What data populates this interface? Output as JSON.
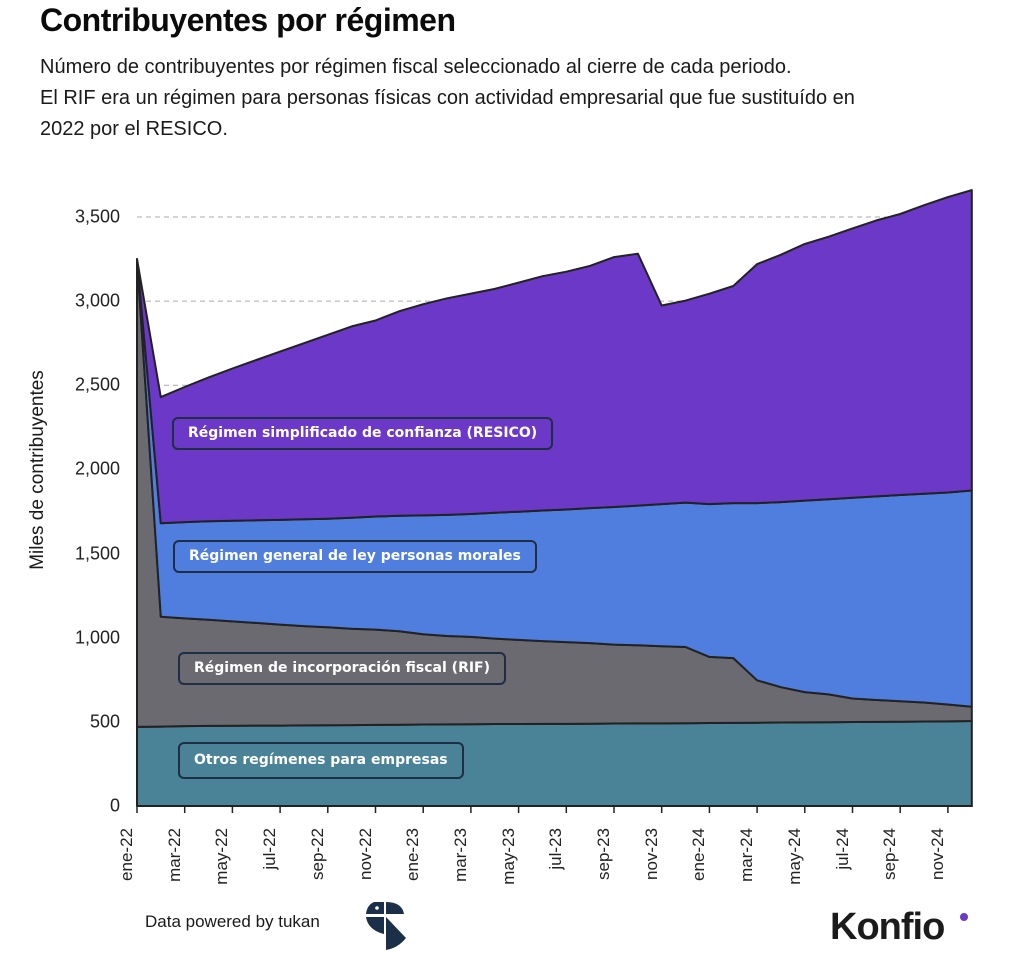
{
  "header": {
    "title": "Contribuyentes por régimen",
    "subtitle_lines": [
      "Número de contribuyentes por régimen fiscal seleccionado al cierre de cada periodo.",
      "El RIF era un régimen para personas físicas con actividad empresarial que fue sustituído en",
      "2022 por el RESICO."
    ]
  },
  "footer": {
    "powered_by": "Data powered by tukan",
    "brand": "Konfio",
    "brand_accent": "#6b3ac8"
  },
  "colors": {
    "otros": "#4a8298",
    "rif": "#6b6a70",
    "glpm": "#4f7ede",
    "resico": "#6b38c8",
    "outline": "#222222",
    "grid": "#aaaaaa",
    "label_border": "#1f2d45"
  },
  "chart_data": {
    "type": "area",
    "stacked": true,
    "title": "Contribuyentes por régimen",
    "xlabel": "",
    "ylabel": "Miles de contribuyentes",
    "ylim": [
      0,
      3500
    ],
    "yticks": [
      0,
      500,
      1000,
      1500,
      2000,
      2500,
      3000,
      3500
    ],
    "ytick_labels": [
      "0",
      "500",
      "1,000",
      "1,500",
      "2,000",
      "2,500",
      "3,000",
      "3,500"
    ],
    "grid": "horizontal dashed",
    "x": [
      "ene-22",
      "feb-22",
      "mar-22",
      "abr-22",
      "may-22",
      "jun-22",
      "jul-22",
      "ago-22",
      "sep-22",
      "oct-22",
      "nov-22",
      "dic-22",
      "ene-23",
      "feb-23",
      "mar-23",
      "abr-23",
      "may-23",
      "jun-23",
      "jul-23",
      "ago-23",
      "sep-23",
      "oct-23",
      "nov-23",
      "dic-23",
      "ene-24",
      "feb-24",
      "mar-24",
      "abr-24",
      "may-24",
      "jun-24",
      "jul-24",
      "ago-24",
      "sep-24",
      "oct-24",
      "nov-24",
      "dic-24"
    ],
    "xtick_labels": [
      "ene-22",
      "mar-22",
      "may-22",
      "jul-22",
      "sep-22",
      "nov-22",
      "ene-23",
      "mar-23",
      "may-23",
      "jul-23",
      "sep-23",
      "nov-23",
      "ene-24",
      "mar-24",
      "may-24",
      "jul-24",
      "sep-24",
      "nov-24"
    ],
    "series": [
      {
        "name": "Otros regímenes para empresas",
        "values": [
          470,
          472,
          475,
          476,
          477,
          478,
          478,
          479,
          480,
          481,
          482,
          483,
          484,
          485,
          486,
          487,
          487,
          488,
          488,
          489,
          490,
          491,
          491,
          492,
          493,
          494,
          495,
          496,
          497,
          498,
          499,
          500,
          501,
          502,
          503,
          505
        ]
      },
      {
        "name": "Régimen de incorporación fiscal (RIF)",
        "values": [
          2780,
          653,
          640,
          631,
          620,
          610,
          600,
          590,
          582,
          572,
          566,
          556,
          536,
          525,
          519,
          508,
          500,
          492,
          486,
          479,
          469,
          464,
          458,
          453,
          393,
          385,
          252,
          210,
          180,
          165,
          140,
          130,
          122,
          113,
          100,
          85
        ]
      },
      {
        "name": "Régimen general de ley personas morales",
        "values": [
          0,
          555,
          572,
          585,
          598,
          610,
          622,
          635,
          645,
          660,
          672,
          686,
          707,
          720,
          730,
          748,
          762,
          776,
          788,
          802,
          818,
          830,
          845,
          858,
          908,
          921,
          1053,
          1100,
          1138,
          1160,
          1193,
          1210,
          1225,
          1240,
          1260,
          1285
        ]
      },
      {
        "name": "Régimen simplificado de confianza (RESICO)",
        "values": [
          0,
          750,
          803,
          855,
          905,
          952,
          1000,
          1046,
          1093,
          1137,
          1165,
          1215,
          1255,
          1287,
          1310,
          1330,
          1361,
          1392,
          1413,
          1440,
          1485,
          1497,
          1180,
          1200,
          1250,
          1290,
          1420,
          1470,
          1525,
          1560,
          1600,
          1640,
          1670,
          1715,
          1755,
          1785
        ]
      }
    ],
    "stacked_totals_approx": [
      3250,
      2430,
      2490,
      2547,
      2600,
      2650,
      2700,
      2750,
      2800,
      2850,
      2885,
      2940,
      2982,
      3017,
      3045,
      3073,
      3110,
      3148,
      3175,
      3210,
      3262,
      3282,
      2974,
      3003,
      3054,
      3090,
      3220,
      3276,
      3340,
      3383,
      3432,
      3480,
      3518,
      3570,
      3618,
      3660
    ],
    "annotations": [
      "Régimen simplificado de confianza (RESICO)",
      "Régimen general de ley personas morales",
      "Régimen de incorporación fiscal (RIF)",
      "Otros regímenes para empresas"
    ]
  }
}
